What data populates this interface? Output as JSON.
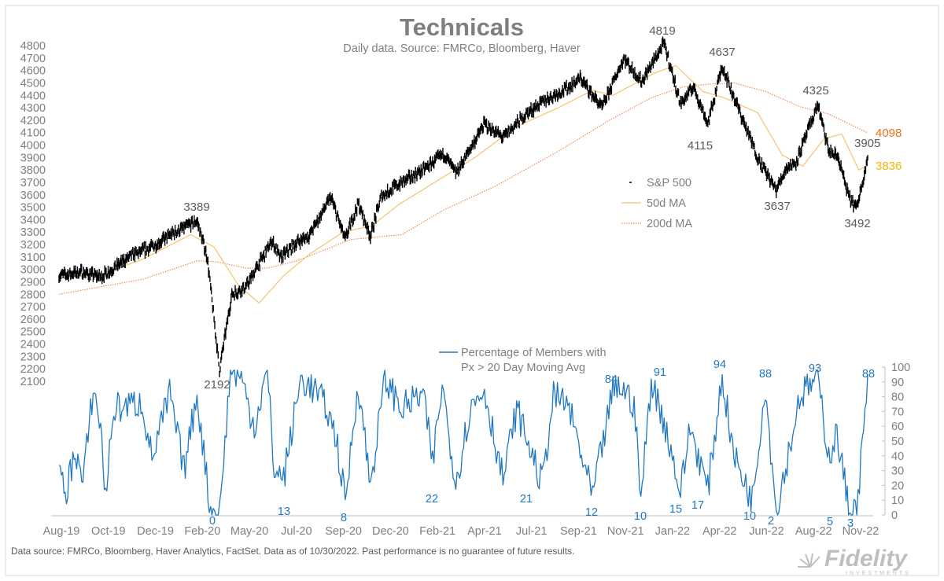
{
  "chart_data": [
    {
      "type": "line",
      "title": "Technicals",
      "subtitle": "Daily data.  Source: FMRCo, Bloomberg, Haver",
      "y_ticks": [
        "2100",
        "2200",
        "2300",
        "2400",
        "2500",
        "2600",
        "2700",
        "2800",
        "2900",
        "3000",
        "3100",
        "3200",
        "3300",
        "3400",
        "3500",
        "3600",
        "3700",
        "3800",
        "3900",
        "4000",
        "4100",
        "4200",
        "4300",
        "4400",
        "4500",
        "4600",
        "4700",
        "4800"
      ],
      "ylim": [
        2100,
        4800
      ],
      "x_labels": [
        "Aug-19",
        "Oct-19",
        "Dec-19",
        "Feb-20",
        "May-20",
        "Jul-20",
        "Sep-20",
        "Dec-20",
        "Feb-21",
        "Apr-21",
        "Jul-21",
        "Sep-21",
        "Nov-21",
        "Jan-22",
        "Apr-22",
        "Jun-22",
        "Aug-22",
        "Nov-22"
      ],
      "series": [
        {
          "name": "S&P 500",
          "color": "#000000",
          "points": [
            [
              "2019-08-01",
              2950
            ],
            [
              "2019-09-01",
              2980
            ],
            [
              "2019-10-01",
              2940
            ],
            [
              "2019-10-20",
              3010
            ],
            [
              "2019-11-15",
              3110
            ],
            [
              "2019-12-15",
              3180
            ],
            [
              "2020-01-15",
              3290
            ],
            [
              "2020-02-19",
              3389
            ],
            [
              "2020-03-05",
              3100
            ],
            [
              "2020-03-23",
              2192
            ],
            [
              "2020-04-10",
              2800
            ],
            [
              "2020-05-01",
              2860
            ],
            [
              "2020-06-08",
              3230
            ],
            [
              "2020-06-20",
              3090
            ],
            [
              "2020-07-15",
              3220
            ],
            [
              "2020-08-01",
              3270
            ],
            [
              "2020-09-02",
              3580
            ],
            [
              "2020-09-23",
              3240
            ],
            [
              "2020-10-12",
              3530
            ],
            [
              "2020-10-30",
              3270
            ],
            [
              "2020-11-15",
              3590
            ],
            [
              "2020-12-15",
              3700
            ],
            [
              "2021-01-15",
              3800
            ],
            [
              "2021-02-15",
              3930
            ],
            [
              "2021-03-04",
              3770
            ],
            [
              "2021-04-15",
              4170
            ],
            [
              "2021-05-12",
              4060
            ],
            [
              "2021-06-15",
              4250
            ],
            [
              "2021-07-15",
              4370
            ],
            [
              "2021-08-15",
              4460
            ],
            [
              "2021-09-02",
              4540
            ],
            [
              "2021-10-04",
              4300
            ],
            [
              "2021-11-05",
              4700
            ],
            [
              "2021-12-01",
              4510
            ],
            [
              "2022-01-03",
              4819
            ],
            [
              "2022-01-27",
              4330
            ],
            [
              "2022-02-15",
              4470
            ],
            [
              "2022-03-08",
              4170
            ],
            [
              "2022-03-29",
              4637
            ],
            [
              "2022-04-15",
              4390
            ],
            [
              "2022-05-20",
              3900
            ],
            [
              "2022-06-16",
              3637
            ],
            [
              "2022-07-01",
              3820
            ],
            [
              "2022-07-15",
              3860
            ],
            [
              "2022-08-16",
              4325
            ],
            [
              "2022-09-01",
              3950
            ],
            [
              "2022-09-15",
              3900
            ],
            [
              "2022-09-30",
              3585
            ],
            [
              "2022-10-12",
              3492
            ],
            [
              "2022-10-28",
              3905
            ]
          ]
        },
        {
          "name": "50d MA",
          "color": "#f5c46a",
          "last_value": "3836",
          "points": [
            [
              "2019-08-01",
              2930
            ],
            [
              "2019-10-01",
              2960
            ],
            [
              "2019-12-01",
              3080
            ],
            [
              "2020-02-10",
              3280
            ],
            [
              "2020-03-15",
              3180
            ],
            [
              "2020-04-20",
              2870
            ],
            [
              "2020-05-20",
              2730
            ],
            [
              "2020-06-25",
              2950
            ],
            [
              "2020-08-01",
              3120
            ],
            [
              "2020-09-20",
              3300
            ],
            [
              "2020-11-01",
              3350
            ],
            [
              "2020-12-10",
              3520
            ],
            [
              "2021-02-01",
              3700
            ],
            [
              "2021-04-01",
              3900
            ],
            [
              "2021-06-01",
              4150
            ],
            [
              "2021-08-01",
              4300
            ],
            [
              "2021-09-20",
              4440
            ],
            [
              "2021-10-20",
              4400
            ],
            [
              "2021-12-20",
              4580
            ],
            [
              "2022-01-20",
              4640
            ],
            [
              "2022-03-01",
              4430
            ],
            [
              "2022-04-01",
              4380
            ],
            [
              "2022-05-20",
              4260
            ],
            [
              "2022-06-25",
              3920
            ],
            [
              "2022-07-25",
              3830
            ],
            [
              "2022-08-25",
              4050
            ],
            [
              "2022-09-20",
              4090
            ],
            [
              "2022-10-15",
              3800
            ],
            [
              "2022-10-28",
              3836
            ]
          ]
        },
        {
          "name": "200d MA",
          "color": "#f08c5a",
          "last_value": "4098",
          "points": [
            [
              "2019-08-01",
              2800
            ],
            [
              "2019-12-01",
              2920
            ],
            [
              "2020-02-20",
              3070
            ],
            [
              "2020-03-20",
              3060
            ],
            [
              "2020-05-01",
              3010
            ],
            [
              "2020-06-01",
              3010
            ],
            [
              "2020-07-15",
              3070
            ],
            [
              "2020-10-01",
              3240
            ],
            [
              "2020-12-15",
              3280
            ],
            [
              "2021-02-15",
              3480
            ],
            [
              "2021-05-01",
              3670
            ],
            [
              "2021-08-01",
              3950
            ],
            [
              "2021-10-15",
              4200
            ],
            [
              "2021-12-15",
              4380
            ],
            [
              "2022-02-01",
              4470
            ],
            [
              "2022-03-10",
              4490
            ],
            [
              "2022-04-15",
              4500
            ],
            [
              "2022-06-01",
              4430
            ],
            [
              "2022-07-20",
              4310
            ],
            [
              "2022-09-01",
              4250
            ],
            [
              "2022-10-28",
              4098
            ]
          ]
        }
      ],
      "annotations": [
        "4819",
        "4637",
        "4325",
        "4115",
        "3637",
        "3492",
        "3905",
        "3389",
        "2192"
      ],
      "legend": {
        "position": "right",
        "items": [
          "S&P 500",
          "50d MA",
          "200d MA"
        ]
      }
    },
    {
      "type": "line",
      "y_ticks": [
        "0",
        "10",
        "20",
        "30",
        "40",
        "50",
        "60",
        "70",
        "80",
        "90",
        "100"
      ],
      "ylim": [
        0,
        100
      ],
      "series": [
        {
          "name": "Percentage of Members with Px > 20 Day Moving Avg",
          "color": "#1f78c1",
          "points": [
            [
              "2019-08-01",
              30
            ],
            [
              "2019-08-10",
              12
            ],
            [
              "2019-08-25",
              45
            ],
            [
              "2019-09-05",
              20
            ],
            [
              "2019-09-20",
              86
            ],
            [
              "2019-10-01",
              60
            ],
            [
              "2019-10-08",
              12
            ],
            [
              "2019-10-20",
              72
            ],
            [
              "2019-12-01",
              76
            ],
            [
              "2019-12-15",
              38
            ],
            [
              "2020-01-10",
              82
            ],
            [
              "2020-01-31",
              30
            ],
            [
              "2020-02-19",
              82
            ],
            [
              "2020-03-10",
              2
            ],
            [
              "2020-03-23",
              0
            ],
            [
              "2020-04-08",
              98
            ],
            [
              "2020-04-22",
              95
            ],
            [
              "2020-05-13",
              60
            ],
            [
              "2020-06-01",
              98
            ],
            [
              "2020-06-11",
              30
            ],
            [
              "2020-06-25",
              25
            ],
            [
              "2020-07-20",
              92
            ],
            [
              "2020-08-10",
              84
            ],
            [
              "2020-08-25",
              74
            ],
            [
              "2020-09-10",
              52
            ],
            [
              "2020-09-23",
              8
            ],
            [
              "2020-10-12",
              90
            ],
            [
              "2020-10-30",
              20
            ],
            [
              "2020-11-20",
              92
            ],
            [
              "2020-12-15",
              72
            ],
            [
              "2021-01-15",
              82
            ],
            [
              "2021-01-29",
              35
            ],
            [
              "2021-02-12",
              88
            ],
            [
              "2021-03-04",
              22
            ],
            [
              "2021-03-25",
              72
            ],
            [
              "2021-04-15",
              85
            ],
            [
              "2021-05-12",
              24
            ],
            [
              "2021-06-01",
              72
            ],
            [
              "2021-07-08",
              21
            ],
            [
              "2021-07-25",
              80
            ],
            [
              "2021-08-15",
              75
            ],
            [
              "2021-09-20",
              12
            ],
            [
              "2021-10-20",
              84
            ],
            [
              "2021-11-01",
              87
            ],
            [
              "2021-11-20",
              75
            ],
            [
              "2021-11-30",
              10
            ],
            [
              "2021-12-15",
              91
            ],
            [
              "2022-01-05",
              60
            ],
            [
              "2022-01-27",
              15
            ],
            [
              "2022-02-10",
              60
            ],
            [
              "2022-03-08",
              17
            ],
            [
              "2022-03-29",
              94
            ],
            [
              "2022-04-15",
              40
            ],
            [
              "2022-05-12",
              10
            ],
            [
              "2022-05-31",
              88
            ],
            [
              "2022-06-16",
              2
            ],
            [
              "2022-07-10",
              55
            ],
            [
              "2022-07-20",
              80
            ],
            [
              "2022-08-16",
              93
            ],
            [
              "2022-09-01",
              40
            ],
            [
              "2022-09-13",
              55
            ],
            [
              "2022-09-30",
              5
            ],
            [
              "2022-10-12",
              3
            ],
            [
              "2022-10-28",
              88
            ]
          ]
        }
      ],
      "annotations": [
        "100",
        "94",
        "93",
        "91",
        "88",
        "88",
        "84",
        "22",
        "21",
        "17",
        "15",
        "13",
        "12",
        "10",
        "10",
        "8",
        "5",
        "3",
        "2",
        "0"
      ],
      "legend": {
        "position": "top-left",
        "items": [
          "Percentage of Members with",
          "Px > 20 Day Moving Avg"
        ]
      }
    }
  ],
  "footer": "Data source: FMRCo, Bloomberg, Haver Analytics, FactSet. Data as of 10/30/2022. Past performance is no guarantee of future results.",
  "logo": {
    "name": "Fidelity",
    "sub": "INVESTMENTS"
  }
}
